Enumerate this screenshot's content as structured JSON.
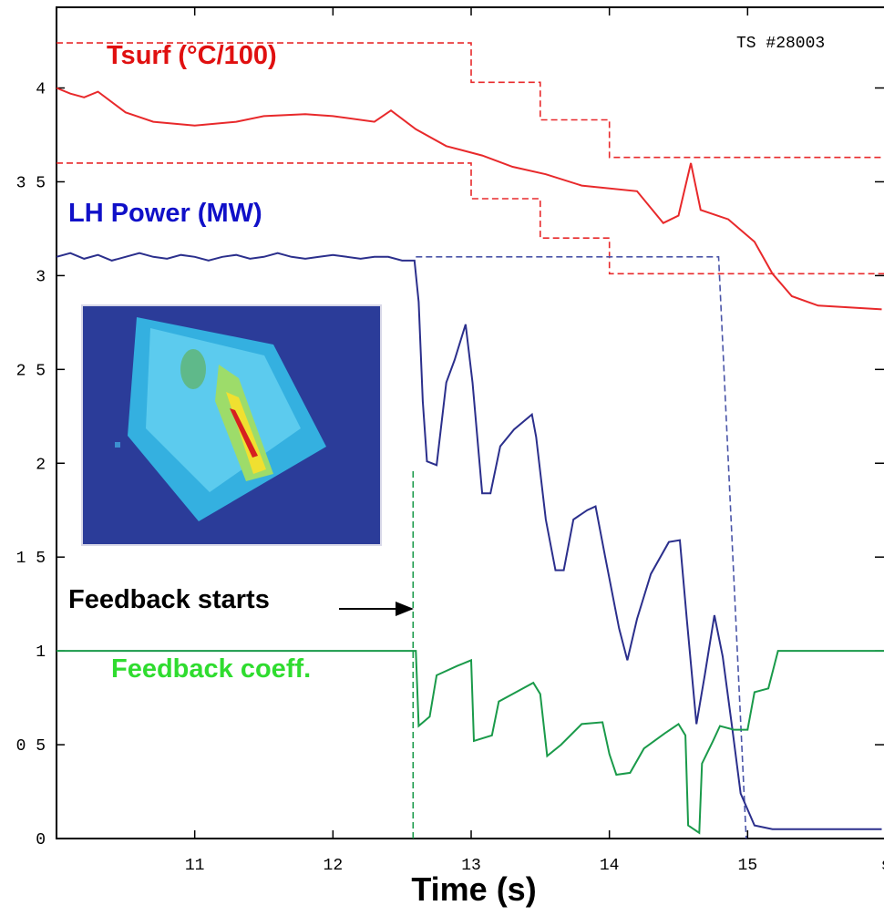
{
  "chart_data": {
    "type": "line",
    "title": "TS #28003",
    "x_label": "Time (s)",
    "annotation": "Feedback starts",
    "xlim": [
      10,
      16
    ],
    "ylim": [
      0,
      4.43
    ],
    "xticks": [
      11,
      12,
      13,
      14,
      15,
      {
        "value": 16,
        "label": "s"
      }
    ],
    "yticks": [
      0,
      {
        "value": 0.5,
        "label": "0 5"
      },
      1,
      {
        "value": 1.5,
        "label": "1 5"
      },
      2,
      {
        "value": 2.5,
        "label": "2 5"
      },
      3,
      {
        "value": 3.5,
        "label": "3 5"
      },
      4
    ],
    "series": [
      {
        "name": "Tsurf (°C/100)",
        "color": "#e8292b",
        "label_color": "#e01010",
        "x": [
          10,
          10.1,
          10.2,
          10.3,
          10.5,
          10.7,
          11,
          11.3,
          11.5,
          11.8,
          12,
          12.3,
          12.42,
          12.6,
          12.82,
          13.08,
          13.3,
          13.54,
          13.8,
          14.2,
          14.39,
          14.5,
          14.59,
          14.66,
          14.86,
          15.05,
          15.18,
          15.32,
          15.51,
          15.97
        ],
        "values": [
          4.0,
          3.97,
          3.95,
          3.98,
          3.87,
          3.82,
          3.8,
          3.82,
          3.85,
          3.86,
          3.85,
          3.82,
          3.88,
          3.78,
          3.69,
          3.64,
          3.58,
          3.54,
          3.48,
          3.45,
          3.28,
          3.32,
          3.6,
          3.35,
          3.3,
          3.18,
          3.01,
          2.89,
          2.84,
          2.82
        ]
      },
      {
        "name": "LH Power (MW)",
        "color": "#2b2f8c",
        "label_color": "#1010c8",
        "x": [
          10,
          10.1,
          10.2,
          10.3,
          10.4,
          10.5,
          10.6,
          10.7,
          10.8,
          10.9,
          11,
          11.1,
          11.2,
          11.3,
          11.4,
          11.5,
          11.6,
          11.7,
          11.8,
          11.9,
          12,
          12.1,
          12.2,
          12.3,
          12.4,
          12.5,
          12.59,
          12.62,
          12.65,
          12.68,
          12.75,
          12.82,
          12.88,
          12.96,
          13.01,
          13.08,
          13.14,
          13.21,
          13.31,
          13.44,
          13.47,
          13.54,
          13.61,
          13.67,
          13.74,
          13.84,
          13.9,
          13.97,
          14.07,
          14.13,
          14.2,
          14.3,
          14.43,
          14.51,
          14.56,
          14.63,
          14.69,
          14.76,
          14.82,
          14.89,
          14.95,
          15.05,
          15.18,
          15.51,
          15.97
        ],
        "values": [
          3.1,
          3.12,
          3.09,
          3.11,
          3.08,
          3.1,
          3.12,
          3.1,
          3.09,
          3.11,
          3.1,
          3.08,
          3.1,
          3.11,
          3.09,
          3.1,
          3.12,
          3.1,
          3.09,
          3.1,
          3.11,
          3.1,
          3.09,
          3.1,
          3.1,
          3.08,
          3.08,
          2.86,
          2.33,
          2.01,
          1.99,
          2.43,
          2.55,
          2.74,
          2.43,
          1.84,
          1.84,
          2.09,
          2.18,
          2.26,
          2.14,
          1.7,
          1.43,
          1.43,
          1.7,
          1.75,
          1.77,
          1.5,
          1.12,
          0.95,
          1.17,
          1.41,
          1.58,
          1.59,
          1.17,
          0.61,
          0.87,
          1.19,
          0.97,
          0.58,
          0.24,
          0.07,
          0.05,
          0.05,
          0.05
        ]
      },
      {
        "name": "Feedback coeff.",
        "color": "#1a9a4a",
        "label_color": "#2fdc2f",
        "x": [
          10,
          12.6,
          12.62,
          12.7,
          12.75,
          12.9,
          13.0,
          13.02,
          13.15,
          13.2,
          13.45,
          13.5,
          13.55,
          13.65,
          13.8,
          13.95,
          14.0,
          14.05,
          14.15,
          14.25,
          14.4,
          14.5,
          14.55,
          14.57,
          14.65,
          14.67,
          14.75,
          14.8,
          14.9,
          15.0,
          15.05,
          15.15,
          15.22,
          16
        ],
        "values": [
          1,
          1,
          0.6,
          0.65,
          0.87,
          0.92,
          0.95,
          0.52,
          0.55,
          0.73,
          0.83,
          0.77,
          0.44,
          0.5,
          0.61,
          0.62,
          0.45,
          0.34,
          0.35,
          0.48,
          0.56,
          0.61,
          0.55,
          0.07,
          0.03,
          0.4,
          0.52,
          0.6,
          0.58,
          0.58,
          0.78,
          0.8,
          1,
          1
        ]
      }
    ],
    "reference_lines": [
      {
        "color": "#e8292b",
        "x": [
          10,
          13,
          13,
          13.5,
          13.5,
          14,
          14,
          16
        ],
        "values": [
          4.24,
          4.24,
          4.03,
          4.03,
          3.83,
          3.83,
          3.63,
          3.63
        ]
      },
      {
        "color": "#e8292b",
        "x": [
          10,
          13,
          13,
          13.5,
          13.5,
          14,
          14,
          16
        ],
        "values": [
          3.6,
          3.6,
          3.41,
          3.41,
          3.2,
          3.2,
          3.01,
          3.01
        ]
      },
      {
        "color": "#4a55a8",
        "x": [
          12.6,
          14.79,
          14.99
        ],
        "values": [
          3.1,
          3.1,
          0
        ]
      },
      {
        "color": "#1a9a4a",
        "x": [
          12.58,
          12.58
        ],
        "values": [
          0,
          1.96
        ]
      }
    ]
  }
}
